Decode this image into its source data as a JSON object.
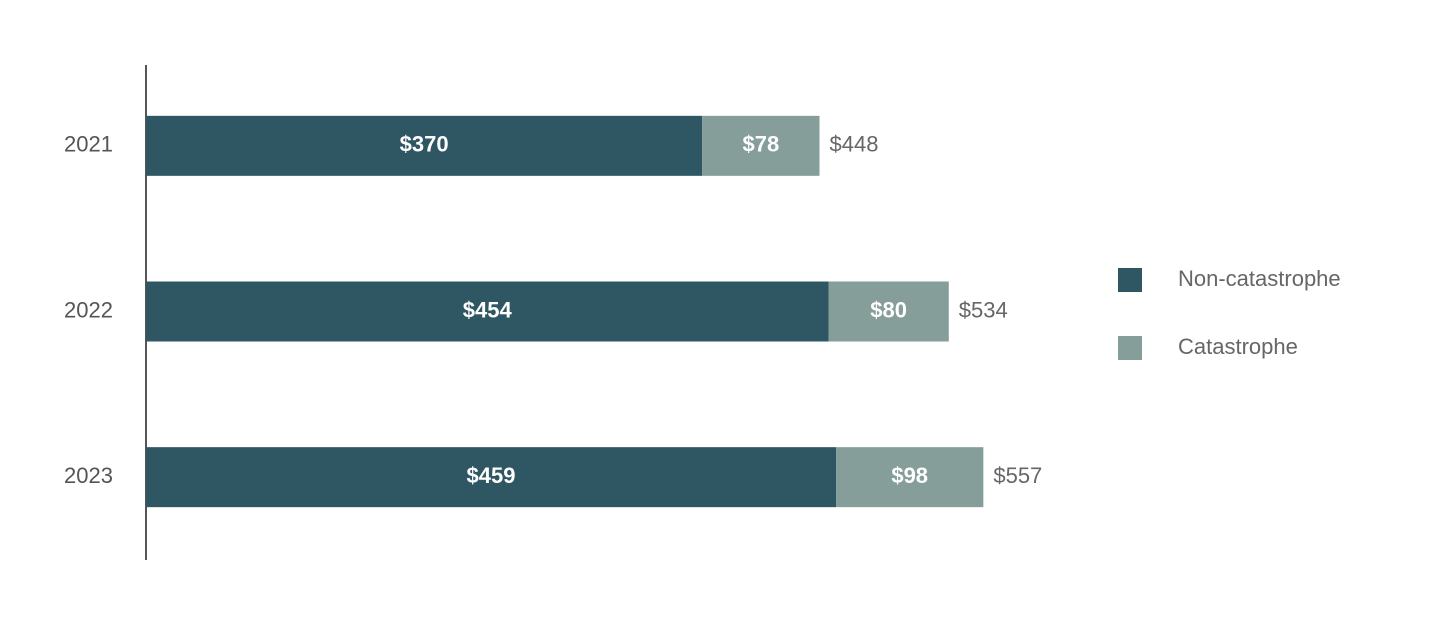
{
  "chart_data": {
    "type": "stacked-bar-horizontal",
    "categories": [
      "2021",
      "2022",
      "2023"
    ],
    "series": [
      {
        "name": "Non-catastrophe",
        "color": "#2f5663",
        "values": [
          370,
          454,
          459
        ],
        "value_labels": [
          "$370",
          "$454",
          "$459"
        ]
      },
      {
        "name": "Catastrophe",
        "color": "#869e9a",
        "values": [
          78,
          80,
          98
        ],
        "value_labels": [
          "$78",
          "$80",
          "$98"
        ]
      }
    ],
    "totals": [
      448,
      534,
      557
    ],
    "total_labels": [
      "$448",
      "$534",
      "$557"
    ],
    "xlim": [
      0,
      600
    ],
    "legend": "right"
  }
}
